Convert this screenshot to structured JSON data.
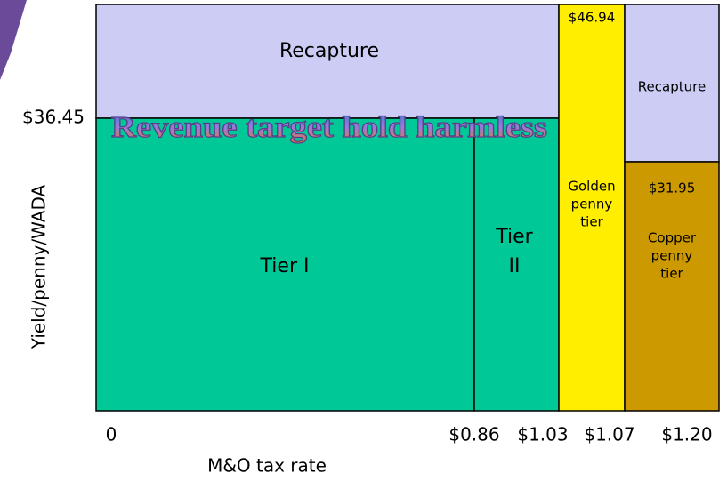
{
  "diagram": {
    "y_axis_label": "Yield/penny/WADA",
    "x_axis_label": "M&O tax rate",
    "y_marker": "$36.45",
    "x_ticks": [
      "0",
      "$0.86",
      "$1.03",
      "$1.07",
      "$1.20"
    ],
    "banner": "Revenue target hold harmless",
    "regions": {
      "recapture_left": "Recapture",
      "tier1": "Tier I",
      "tier2": [
        "Tier",
        "II"
      ],
      "golden_value": "$46.94",
      "golden": [
        "Golden",
        "penny",
        "tier"
      ],
      "recapture_right": "Recapture",
      "copper_value": "$31.95",
      "copper": [
        "Copper",
        "penny",
        "tier"
      ]
    }
  }
}
